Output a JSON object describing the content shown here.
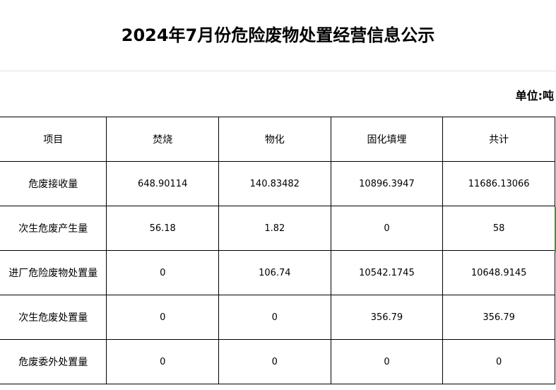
{
  "title": "2024年7月份危险废物处置经营信息公示",
  "unit": "单位:吨",
  "table": {
    "headers": [
      "项目",
      "焚烧",
      "物化",
      "固化填埋",
      "共计"
    ],
    "rows": [
      [
        "危废接收量",
        "648.90114",
        "140.83482",
        "10896.3947",
        "11686.13066"
      ],
      [
        "次生危废产生量",
        "56.18",
        "1.82",
        "0",
        "58"
      ],
      [
        "进厂危险废物处置量",
        "0",
        "106.74",
        "10542.1745",
        "10648.9145"
      ],
      [
        "次生危废处置量",
        "0",
        "0",
        "356.79",
        "356.79"
      ],
      [
        "危废委外处置量",
        "0",
        "0",
        "0",
        "0"
      ]
    ]
  },
  "colors": {
    "selection": "#3a9a2a"
  }
}
